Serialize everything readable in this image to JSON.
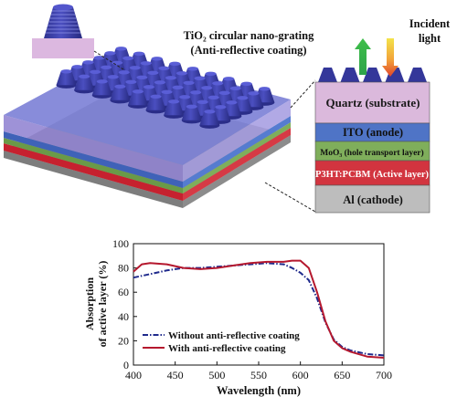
{
  "diagram": {
    "grating_label": {
      "line1": "TiO₂ circular nano-grating",
      "line2": "(Anti-reflective coating)"
    },
    "light_label": {
      "line1": "Incident",
      "line2": "light"
    },
    "layers": [
      {
        "label": "Quartz (substrate)",
        "color": "#d9b7d8"
      },
      {
        "label": "ITO (anode)",
        "color": "#4f74c6"
      },
      {
        "label": "MoO₃ (hole transport layer)",
        "color": "#7fae5b"
      },
      {
        "label": "P3HT:PCBM (Active layer)",
        "color": "#d2343f"
      },
      {
        "label": "Al (cathode)",
        "color": "#bdbdbd"
      }
    ],
    "cone_color": "#3a3ea6"
  },
  "chart_data": {
    "type": "line",
    "xlabel": "Wavelength (nm)",
    "ylabel_line1": "Absorption",
    "ylabel_line2": "of active layer (%)",
    "xlim": [
      400,
      700
    ],
    "ylim": [
      0,
      100
    ],
    "xticks": [
      400,
      450,
      500,
      550,
      600,
      650,
      700
    ],
    "yticks": [
      0,
      20,
      40,
      60,
      80,
      100
    ],
    "grid": false,
    "legend_position": "bottom-left",
    "series": [
      {
        "name": "Without anti-reflective coating",
        "style": "dashdot",
        "color": "#1f2a8c",
        "x": [
          400,
          420,
          440,
          460,
          480,
          500,
          520,
          540,
          560,
          580,
          590,
          600,
          610,
          620,
          630,
          640,
          650,
          660,
          680,
          700
        ],
        "y": [
          72,
          75,
          78,
          80,
          80,
          81,
          82,
          83,
          84,
          83,
          80,
          76,
          70,
          55,
          35,
          21,
          15,
          12,
          9,
          8
        ]
      },
      {
        "name": "With anti-reflective coating",
        "style": "solid",
        "color": "#b5182e",
        "x": [
          400,
          410,
          420,
          440,
          460,
          480,
          500,
          520,
          540,
          560,
          580,
          590,
          600,
          610,
          620,
          630,
          640,
          650,
          660,
          680,
          700
        ],
        "y": [
          77,
          83,
          84,
          83,
          80,
          79,
          80,
          82,
          84,
          85,
          85,
          86,
          86,
          80,
          60,
          36,
          20,
          14,
          11,
          7,
          6
        ]
      }
    ]
  }
}
